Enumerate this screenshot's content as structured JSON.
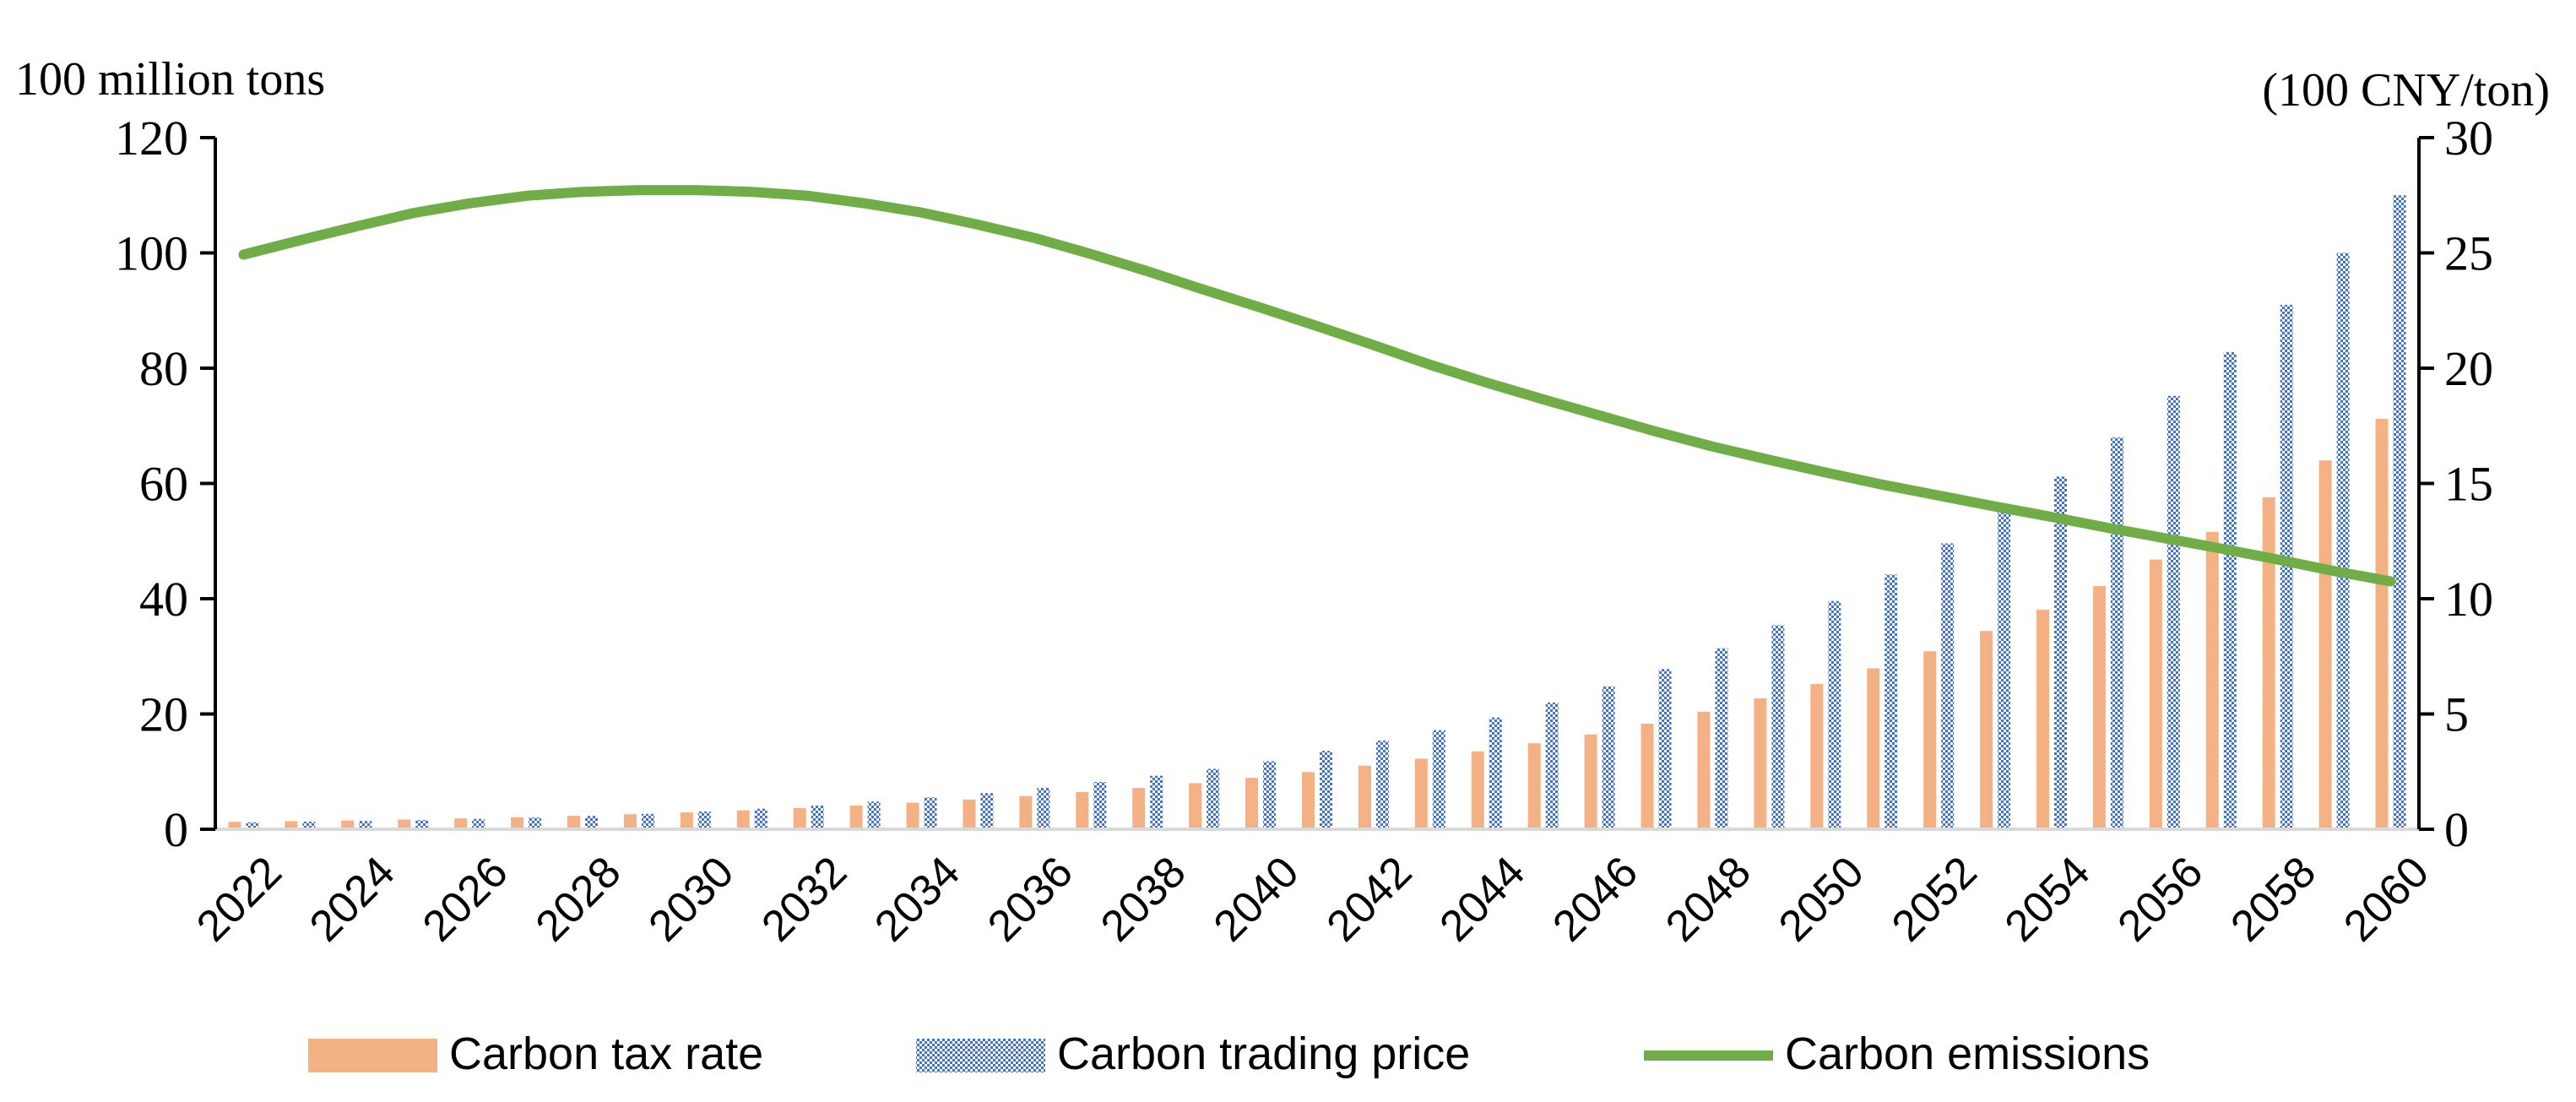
{
  "chart_data": {
    "type": "bar+line",
    "title": "",
    "y_left_label": "100 million tons",
    "y_right_label": "(100 CNY/ton)",
    "y_left_ticks": [
      "0",
      "20",
      "40",
      "60",
      "80",
      "100",
      "120"
    ],
    "y_right_ticks": [
      "0",
      "5",
      "10",
      "15",
      "20",
      "25",
      "30"
    ],
    "y_left_range": [
      0,
      120
    ],
    "y_right_range": [
      0,
      30
    ],
    "x_tick_labels": [
      "2022",
      "2024",
      "2026",
      "2028",
      "2030",
      "2032",
      "2034",
      "2036",
      "2038",
      "2040",
      "2042",
      "2044",
      "2046",
      "2048",
      "2050",
      "2052",
      "2054",
      "2056",
      "2058",
      "2060"
    ],
    "years": [
      2022,
      2023,
      2024,
      2025,
      2026,
      2027,
      2028,
      2029,
      2030,
      2031,
      2032,
      2033,
      2034,
      2035,
      2036,
      2037,
      2038,
      2039,
      2040,
      2041,
      2042,
      2043,
      2044,
      2045,
      2046,
      2047,
      2048,
      2049,
      2050,
      2051,
      2052,
      2053,
      2054,
      2055,
      2056,
      2057,
      2058,
      2059,
      2060
    ],
    "series": [
      {
        "name": "Carbon tax rate",
        "type": "bar",
        "axis": "right",
        "color": "#F4B183",
        "values": [
          0.32,
          0.35,
          0.38,
          0.42,
          0.47,
          0.52,
          0.58,
          0.65,
          0.73,
          0.82,
          0.92,
          1.03,
          1.15,
          1.29,
          1.44,
          1.61,
          1.79,
          2.0,
          2.23,
          2.48,
          2.76,
          3.06,
          3.38,
          3.73,
          4.11,
          4.58,
          5.1,
          5.68,
          6.3,
          6.98,
          7.72,
          8.6,
          9.52,
          10.55,
          11.7,
          12.9,
          14.4,
          16.0,
          17.8
        ]
      },
      {
        "name": "Carbon trading price",
        "type": "bar",
        "axis": "right",
        "color": "#4472C4",
        "values": [
          0.3,
          0.33,
          0.36,
          0.4,
          0.45,
          0.51,
          0.58,
          0.67,
          0.77,
          0.89,
          1.03,
          1.2,
          1.38,
          1.57,
          1.8,
          2.05,
          2.32,
          2.62,
          2.95,
          3.4,
          3.85,
          4.3,
          4.85,
          5.5,
          6.2,
          6.95,
          7.85,
          8.85,
          9.9,
          11.05,
          12.4,
          13.9,
          15.3,
          17.0,
          18.8,
          20.7,
          22.75,
          25.0,
          27.5
        ]
      },
      {
        "name": "Carbon emissions",
        "type": "line",
        "axis": "left",
        "color": "#70AD47",
        "values": [
          99.7,
          102.2,
          104.6,
          106.9,
          108.6,
          109.9,
          110.6,
          110.9,
          110.9,
          110.6,
          109.9,
          108.6,
          107.0,
          104.9,
          102.6,
          99.8,
          96.8,
          93.6,
          90.5,
          87.3,
          84.0,
          80.6,
          77.5,
          74.6,
          71.8,
          69.0,
          66.4,
          64.1,
          61.9,
          59.8,
          57.9,
          56.0,
          54.2,
          52.3,
          50.5,
          48.7,
          46.8,
          44.8,
          43.0
        ]
      }
    ],
    "legend_position": "bottom",
    "grid": false
  }
}
